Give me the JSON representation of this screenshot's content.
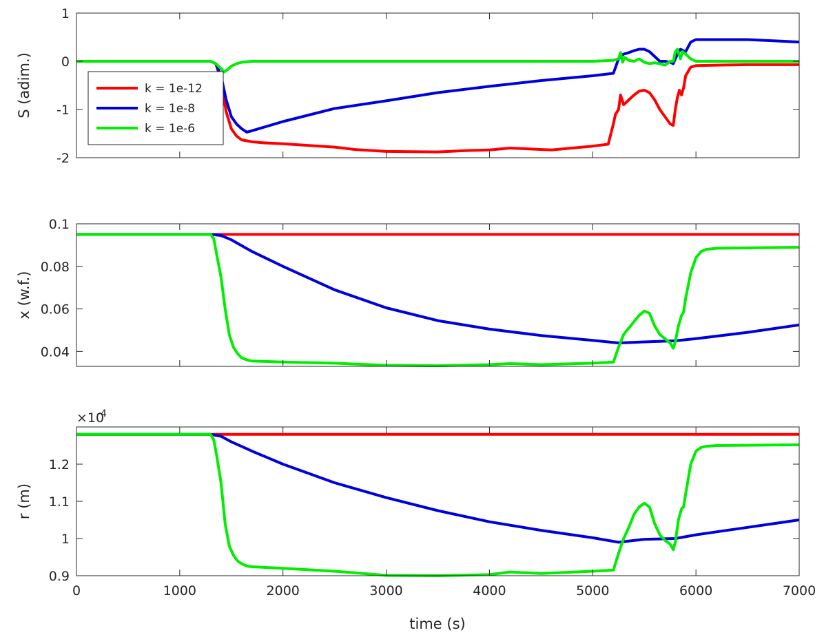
{
  "chart_data": [
    {
      "type": "line",
      "ylabel": "S (adim.)",
      "xlim": [
        0,
        7000
      ],
      "ylim": [
        -2,
        1
      ],
      "yticks": [
        -2,
        -1,
        0,
        1
      ],
      "ytick_labels": [
        "-2",
        "-1",
        "0",
        "1"
      ],
      "exponent_label": "",
      "show_xticklabels": false,
      "grid": false,
      "legend": {
        "position": "left",
        "entries": [
          "k = 1e-12",
          "k = 1e-8",
          "k = 1e-6"
        ]
      },
      "series": [
        {
          "name": "k = 1e-12",
          "color": "#ff0000",
          "x": [
            0,
            1300,
            1350,
            1400,
            1450,
            1500,
            1550,
            1600,
            1700,
            1800,
            2000,
            2200,
            2500,
            2700,
            3000,
            3500,
            3800,
            4000,
            4200,
            4400,
            4600,
            4800,
            5000,
            5150,
            5200,
            5220,
            5250,
            5270,
            5300,
            5350,
            5400,
            5450,
            5500,
            5550,
            5600,
            5650,
            5700,
            5750,
            5780,
            5800,
            5820,
            5840,
            5860,
            5880,
            5900,
            5950,
            6000,
            6200,
            6500,
            7000
          ],
          "y": [
            0,
            0,
            -0.05,
            -0.4,
            -1.05,
            -1.4,
            -1.55,
            -1.63,
            -1.67,
            -1.69,
            -1.71,
            -1.74,
            -1.78,
            -1.83,
            -1.87,
            -1.88,
            -1.85,
            -1.84,
            -1.8,
            -1.82,
            -1.84,
            -1.8,
            -1.76,
            -1.72,
            -1.3,
            -1.1,
            -1.0,
            -0.7,
            -0.9,
            -0.8,
            -0.7,
            -0.62,
            -0.6,
            -0.65,
            -0.8,
            -1.0,
            -1.15,
            -1.3,
            -1.33,
            -1.0,
            -0.75,
            -0.6,
            -0.7,
            -0.55,
            -0.3,
            -0.12,
            -0.09,
            -0.08,
            -0.07,
            -0.07
          ]
        },
        {
          "name": "k = 1e-8",
          "color": "#0000dd",
          "x": [
            0,
            1300,
            1350,
            1400,
            1450,
            1500,
            1550,
            1600,
            1650,
            1700,
            2000,
            2500,
            3000,
            3500,
            4000,
            4500,
            5000,
            5200,
            5250,
            5300,
            5350,
            5400,
            5450,
            5500,
            5550,
            5600,
            5650,
            5700,
            5750,
            5780,
            5800,
            5820,
            5850,
            5900,
            5950,
            6000,
            6500,
            7000
          ],
          "y": [
            0,
            0,
            -0.05,
            -0.3,
            -0.8,
            -1.15,
            -1.3,
            -1.4,
            -1.47,
            -1.44,
            -1.25,
            -0.98,
            -0.82,
            -0.65,
            -0.52,
            -0.4,
            -0.3,
            -0.25,
            0.05,
            0.15,
            0.18,
            0.22,
            0.25,
            0.25,
            0.2,
            0.1,
            0.0,
            0.0,
            -0.02,
            -0.05,
            0.05,
            0.15,
            0.25,
            0.2,
            0.4,
            0.45,
            0.45,
            0.4
          ]
        },
        {
          "name": "k = 1e-6",
          "color": "#00ee00",
          "x": [
            0,
            1300,
            1350,
            1400,
            1430,
            1460,
            1500,
            1550,
            1600,
            1700,
            2000,
            3000,
            4000,
            5000,
            5200,
            5250,
            5270,
            5290,
            5310,
            5350,
            5400,
            5450,
            5500,
            5550,
            5600,
            5650,
            5700,
            5750,
            5780,
            5800,
            5820,
            5850,
            5870,
            5900,
            5950,
            6000,
            6100,
            7000
          ],
          "y": [
            0,
            0,
            -0.05,
            -0.15,
            -0.22,
            -0.18,
            -0.1,
            -0.05,
            -0.02,
            0,
            0,
            0,
            0,
            0,
            0.02,
            0.05,
            0.18,
            -0.02,
            0.08,
            0.02,
            0.0,
            0.05,
            -0.02,
            -0.05,
            -0.03,
            -0.05,
            -0.08,
            0.0,
            0.0,
            0.2,
            0.25,
            0.05,
            0.2,
            0.15,
            0.05,
            0.0,
            0.0,
            0.0
          ]
        }
      ]
    },
    {
      "type": "line",
      "ylabel": "x (w.f.)",
      "xlim": [
        0,
        7000
      ],
      "ylim": [
        0.033,
        0.1
      ],
      "yticks": [
        0.04,
        0.06,
        0.08,
        0.1
      ],
      "ytick_labels": [
        "0.04",
        "0.06",
        "0.08",
        "0.1"
      ],
      "exponent_label": "",
      "show_xticklabels": false,
      "grid": false,
      "series": [
        {
          "name": "k = 1e-12",
          "color": "#ff0000",
          "x": [
            0,
            7000
          ],
          "y": [
            0.095,
            0.095
          ]
        },
        {
          "name": "k = 1e-8",
          "color": "#0000dd",
          "x": [
            0,
            1300,
            1400,
            1500,
            1700,
            2000,
            2500,
            3000,
            3500,
            4000,
            4500,
            5000,
            5250,
            5500,
            5800,
            6000,
            6500,
            7000
          ],
          "y": [
            0.095,
            0.095,
            0.0945,
            0.0925,
            0.087,
            0.08,
            0.069,
            0.0605,
            0.0545,
            0.0505,
            0.0475,
            0.0452,
            0.044,
            0.0445,
            0.045,
            0.046,
            0.049,
            0.0525
          ]
        },
        {
          "name": "k = 1e-6",
          "color": "#00ee00",
          "x": [
            0,
            1300,
            1330,
            1360,
            1400,
            1440,
            1480,
            1520,
            1560,
            1600,
            1650,
            1700,
            2000,
            2500,
            3000,
            3500,
            4000,
            4200,
            4500,
            5000,
            5200,
            5250,
            5300,
            5350,
            5400,
            5450,
            5500,
            5550,
            5600,
            5650,
            5700,
            5750,
            5780,
            5800,
            5830,
            5860,
            5880,
            5900,
            5950,
            6000,
            6050,
            6100,
            6200,
            7000
          ],
          "y": [
            0.095,
            0.095,
            0.093,
            0.085,
            0.075,
            0.06,
            0.048,
            0.042,
            0.039,
            0.037,
            0.036,
            0.0355,
            0.035,
            0.0345,
            0.0335,
            0.0333,
            0.0338,
            0.0343,
            0.0338,
            0.0345,
            0.035,
            0.042,
            0.048,
            0.051,
            0.054,
            0.057,
            0.059,
            0.058,
            0.052,
            0.048,
            0.046,
            0.044,
            0.0415,
            0.0445,
            0.052,
            0.057,
            0.0585,
            0.065,
            0.077,
            0.084,
            0.087,
            0.088,
            0.0885,
            0.089
          ]
        }
      ]
    },
    {
      "type": "line",
      "ylabel": "r (m)",
      "xlabel": "time (s)",
      "xlim": [
        0,
        7000
      ],
      "ylim": [
        0.9,
        1.3
      ],
      "yticks": [
        0.9,
        1,
        1.1,
        1.2
      ],
      "ytick_labels": [
        "0.9",
        "1",
        "1.1",
        "1.2"
      ],
      "exponent_label": "×10",
      "exponent_power": "-4",
      "show_xticklabels": true,
      "xticks": [
        0,
        1000,
        2000,
        3000,
        4000,
        5000,
        6000,
        7000
      ],
      "xtick_labels": [
        "0",
        "1000",
        "2000",
        "3000",
        "4000",
        "5000",
        "6000",
        "7000"
      ],
      "grid": false,
      "series": [
        {
          "name": "k = 1e-12",
          "color": "#ff0000",
          "x": [
            0,
            7000
          ],
          "y": [
            1.28,
            1.28
          ]
        },
        {
          "name": "k = 1e-8",
          "color": "#0000dd",
          "x": [
            0,
            1300,
            1400,
            1500,
            1700,
            2000,
            2500,
            3000,
            3500,
            4000,
            4500,
            5000,
            5250,
            5500,
            5800,
            6000,
            6500,
            7000
          ],
          "y": [
            1.28,
            1.28,
            1.275,
            1.26,
            1.235,
            1.2,
            1.15,
            1.11,
            1.075,
            1.045,
            1.022,
            1.002,
            0.99,
            0.998,
            1.0,
            1.01,
            1.03,
            1.05
          ]
        },
        {
          "name": "k = 1e-6",
          "color": "#00ee00",
          "x": [
            0,
            1300,
            1330,
            1360,
            1400,
            1440,
            1480,
            1520,
            1560,
            1600,
            1650,
            1700,
            2000,
            2500,
            3000,
            3500,
            4000,
            4200,
            4500,
            5000,
            5200,
            5250,
            5300,
            5350,
            5400,
            5450,
            5500,
            5550,
            5600,
            5650,
            5700,
            5750,
            5780,
            5800,
            5830,
            5860,
            5880,
            5900,
            5950,
            6000,
            6050,
            6100,
            6200,
            7000
          ],
          "y": [
            1.28,
            1.28,
            1.265,
            1.22,
            1.15,
            1.04,
            0.98,
            0.955,
            0.94,
            0.932,
            0.926,
            0.924,
            0.92,
            0.912,
            0.901,
            0.9,
            0.903,
            0.91,
            0.906,
            0.912,
            0.915,
            0.96,
            1.0,
            1.03,
            1.065,
            1.085,
            1.095,
            1.085,
            1.04,
            1.01,
            0.995,
            0.985,
            0.97,
            0.99,
            1.05,
            1.08,
            1.085,
            1.12,
            1.2,
            1.235,
            1.245,
            1.248,
            1.25,
            1.252
          ]
        }
      ]
    }
  ]
}
